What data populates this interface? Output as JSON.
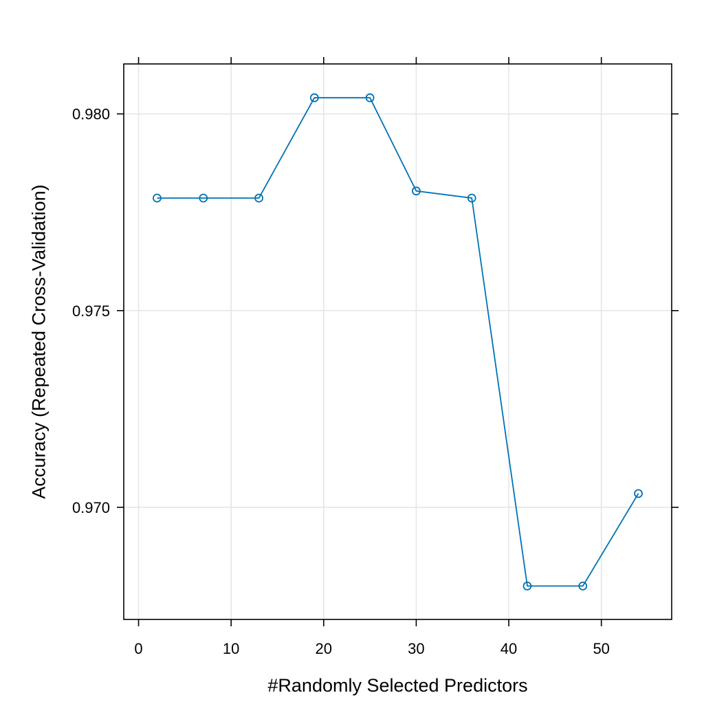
{
  "chart_data": {
    "type": "line",
    "title": "",
    "xlabel": "#Randomly Selected Predictors",
    "ylabel": "Accuracy (Repeated Cross-Validation)",
    "xlim": [
      -1.6,
      57.6
    ],
    "ylim": [
      0.96715,
      0.98127
    ],
    "x_ticks": [
      0,
      10,
      20,
      30,
      40,
      50
    ],
    "x_tick_labels": [
      "0",
      "10",
      "20",
      "30",
      "40",
      "50"
    ],
    "y_ticks": [
      0.97,
      0.975,
      0.98
    ],
    "y_tick_labels": [
      "0.970",
      "0.975",
      "0.980"
    ],
    "grid": true,
    "line_color": "#0072B2",
    "grid_color": "#e6e6e6",
    "series": [
      {
        "x": [
          2,
          7,
          13,
          19,
          25,
          30,
          36,
          42,
          48,
          54
        ],
        "y": [
          0.97786,
          0.97786,
          0.97786,
          0.98041,
          0.98041,
          0.97804,
          0.97786,
          0.968,
          0.968,
          0.97035
        ]
      }
    ]
  }
}
